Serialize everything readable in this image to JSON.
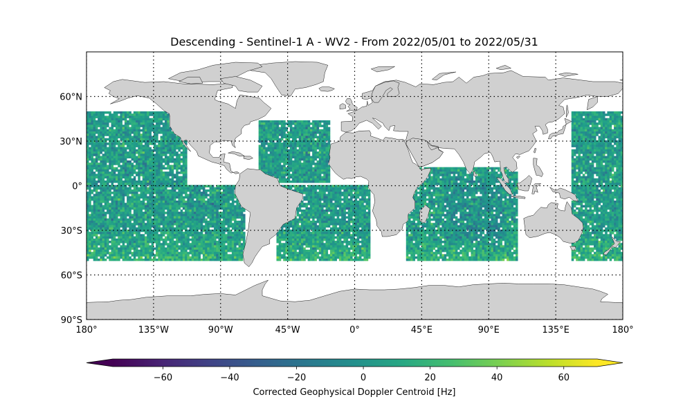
{
  "title": "Descending - Sentinel-1 A - WV2 - From 2022/05/01 to 2022/05/31",
  "map": {
    "projection": "PlateCarree",
    "extent": {
      "lon": [
        -180,
        180
      ],
      "lat": [
        -90,
        90
      ]
    },
    "land_color": "#d0d0d0",
    "coast_color": "#000000",
    "gridlines": "dotted",
    "lon_ticks": [
      {
        "value": -180,
        "label": "180°"
      },
      {
        "value": -135,
        "label": "135°W"
      },
      {
        "value": -90,
        "label": "90°W"
      },
      {
        "value": -45,
        "label": "45°W"
      },
      {
        "value": 0,
        "label": "0°"
      },
      {
        "value": 45,
        "label": "45°E"
      },
      {
        "value": 90,
        "label": "90°E"
      },
      {
        "value": 135,
        "label": "135°E"
      },
      {
        "value": 180,
        "label": "180°"
      }
    ],
    "lat_ticks": [
      {
        "value": 60,
        "label": "60°N"
      },
      {
        "value": 30,
        "label": "30°N"
      },
      {
        "value": 0,
        "label": "0°"
      },
      {
        "value": -30,
        "label": "30°S"
      },
      {
        "value": -60,
        "label": "60°S"
      },
      {
        "value": -90,
        "label": "90°S"
      }
    ]
  },
  "chart_data": {
    "type": "heatmap",
    "title": "Descending - Sentinel-1 A - WV2 - From 2022/05/01 to 2022/05/31",
    "xlim": [
      -180,
      180
    ],
    "ylim": [
      -90,
      90
    ],
    "cell_deg": 1.5,
    "value_range": [
      -75,
      70
    ],
    "typical_value_hz": 5,
    "coverage_lat": [
      -50,
      50
    ],
    "colormap": "viridis",
    "ocean_regions": [
      {
        "name": "North Pacific",
        "lon": [
          -180,
          -113
        ],
        "lat": [
          0,
          50
        ]
      },
      {
        "name": "South Pacific",
        "lon": [
          -180,
          -74
        ],
        "lat": [
          -50,
          0
        ]
      },
      {
        "name": "North Atlantic",
        "lon": [
          -65,
          -17
        ],
        "lat": [
          2,
          44
        ]
      },
      {
        "name": "South Atlantic",
        "lon": [
          -53,
          10
        ],
        "lat": [
          -50,
          0
        ]
      },
      {
        "name": "Indian Ocean",
        "lon": [
          35,
          110
        ],
        "lat": [
          -50,
          12
        ]
      },
      {
        "name": "West Pacific",
        "lon": [
          145,
          180
        ],
        "lat": [
          -50,
          50
        ]
      }
    ],
    "colorbar": {
      "label": "Corrected Geophysical Doppler Centroid [Hz]",
      "min": -75,
      "max": 70,
      "extend": "both",
      "ticks": [
        -60,
        -40,
        -20,
        0,
        20,
        40,
        60
      ],
      "tick_labels": [
        "−60",
        "−40",
        "−20",
        "0",
        "20",
        "40",
        "60"
      ]
    }
  }
}
